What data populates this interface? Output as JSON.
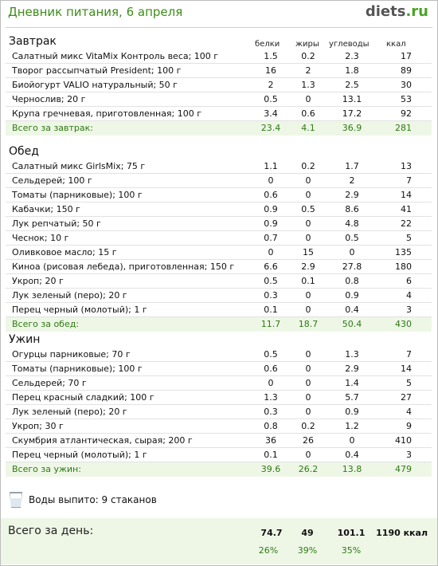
{
  "page_title": "Дневник питания, 6 апреля",
  "logo": {
    "main": "diets",
    "tld": ".ru"
  },
  "columns": {
    "protein": "белки",
    "fat": "жиры",
    "carbs": "углеводы",
    "kcal": "ккал"
  },
  "meals": [
    {
      "title": "Завтрак",
      "items": [
        {
          "name": "Салатный микс VitaMix Контроль веса; 100 г",
          "protein": "1.5",
          "fat": "0.2",
          "carbs": "2.3",
          "kcal": "17"
        },
        {
          "name": "Творог рассыпчатый President; 100 г",
          "protein": "16",
          "fat": "2",
          "carbs": "1.8",
          "kcal": "89"
        },
        {
          "name": "Биойогурт VALIO натуральный; 50 г",
          "protein": "2",
          "fat": "1.3",
          "carbs": "2.5",
          "kcal": "30"
        },
        {
          "name": "Чернослив; 20 г",
          "protein": "0.5",
          "fat": "0",
          "carbs": "13.1",
          "kcal": "53"
        },
        {
          "name": "Крупа гречневая, приготовленная; 100 г",
          "protein": "3.4",
          "fat": "0.6",
          "carbs": "17.2",
          "kcal": "92"
        }
      ],
      "total": {
        "label": "Всего за завтрак:",
        "protein": "23.4",
        "fat": "4.1",
        "carbs": "36.9",
        "kcal": "281"
      }
    },
    {
      "title": "Обед",
      "items": [
        {
          "name": "Салатный микс GirlsMix; 75 г",
          "protein": "1.1",
          "fat": "0.2",
          "carbs": "1.7",
          "kcal": "13"
        },
        {
          "name": "Сельдерей; 100 г",
          "protein": "0",
          "fat": "0",
          "carbs": "2",
          "kcal": "7"
        },
        {
          "name": "Томаты (парниковые); 100 г",
          "protein": "0.6",
          "fat": "0",
          "carbs": "2.9",
          "kcal": "14"
        },
        {
          "name": "Кабачки; 150 г",
          "protein": "0.9",
          "fat": "0.5",
          "carbs": "8.6",
          "kcal": "41"
        },
        {
          "name": "Лук репчатый; 50 г",
          "protein": "0.9",
          "fat": "0",
          "carbs": "4.8",
          "kcal": "22"
        },
        {
          "name": "Чеснок; 10 г",
          "protein": "0.7",
          "fat": "0",
          "carbs": "0.5",
          "kcal": "5"
        },
        {
          "name": "Оливковое масло; 15 г",
          "protein": "0",
          "fat": "15",
          "carbs": "0",
          "kcal": "135"
        },
        {
          "name": "Киноа (рисовая лебеда), приготовленная; 150 г",
          "protein": "6.6",
          "fat": "2.9",
          "carbs": "27.8",
          "kcal": "180"
        },
        {
          "name": "Укроп; 20 г",
          "protein": "0.5",
          "fat": "0.1",
          "carbs": "0.8",
          "kcal": "6"
        },
        {
          "name": "Лук зеленый (перо); 20 г",
          "protein": "0.3",
          "fat": "0",
          "carbs": "0.9",
          "kcal": "4"
        },
        {
          "name": "Перец черный (молотый); 1 г",
          "protein": "0.1",
          "fat": "0",
          "carbs": "0.4",
          "kcal": "3"
        }
      ],
      "total": {
        "label": "Всего за обед:",
        "protein": "11.7",
        "fat": "18.7",
        "carbs": "50.4",
        "kcal": "430"
      }
    },
    {
      "title": "Ужин",
      "items": [
        {
          "name": "Огурцы парниковые; 70 г",
          "protein": "0.5",
          "fat": "0",
          "carbs": "1.3",
          "kcal": "7"
        },
        {
          "name": "Томаты (парниковые); 100 г",
          "protein": "0.6",
          "fat": "0",
          "carbs": "2.9",
          "kcal": "14"
        },
        {
          "name": "Сельдерей; 70 г",
          "protein": "0",
          "fat": "0",
          "carbs": "1.4",
          "kcal": "5"
        },
        {
          "name": "Перец красный сладкий; 100 г",
          "protein": "1.3",
          "fat": "0",
          "carbs": "5.7",
          "kcal": "27"
        },
        {
          "name": "Лук зеленый (перо); 20 г",
          "protein": "0.3",
          "fat": "0",
          "carbs": "0.9",
          "kcal": "4"
        },
        {
          "name": "Укроп; 30 г",
          "protein": "0.8",
          "fat": "0.2",
          "carbs": "1.2",
          "kcal": "9"
        },
        {
          "name": "Скумбрия атлантическая, сырая; 200 г",
          "protein": "36",
          "fat": "26",
          "carbs": "0",
          "kcal": "410"
        },
        {
          "name": "Перец черный (молотый); 1 г",
          "protein": "0.1",
          "fat": "0",
          "carbs": "0.4",
          "kcal": "3"
        }
      ],
      "total": {
        "label": "Всего за ужин:",
        "protein": "39.6",
        "fat": "26.2",
        "carbs": "13.8",
        "kcal": "479"
      }
    }
  ],
  "water": {
    "icon": "glass-icon",
    "label": "Воды выпито: 9 стаканов"
  },
  "day_total": {
    "label": "Всего за день:",
    "protein": "74.7",
    "fat": "49",
    "carbs": "101.1",
    "kcal": "1190 ккал",
    "protein_pct": "26%",
    "fat_pct": "39%",
    "carbs_pct": "35%"
  },
  "colors": {
    "title_green": "#3d8c1a",
    "total_green": "#2d7a13",
    "total_bg": "#eef7e6"
  }
}
